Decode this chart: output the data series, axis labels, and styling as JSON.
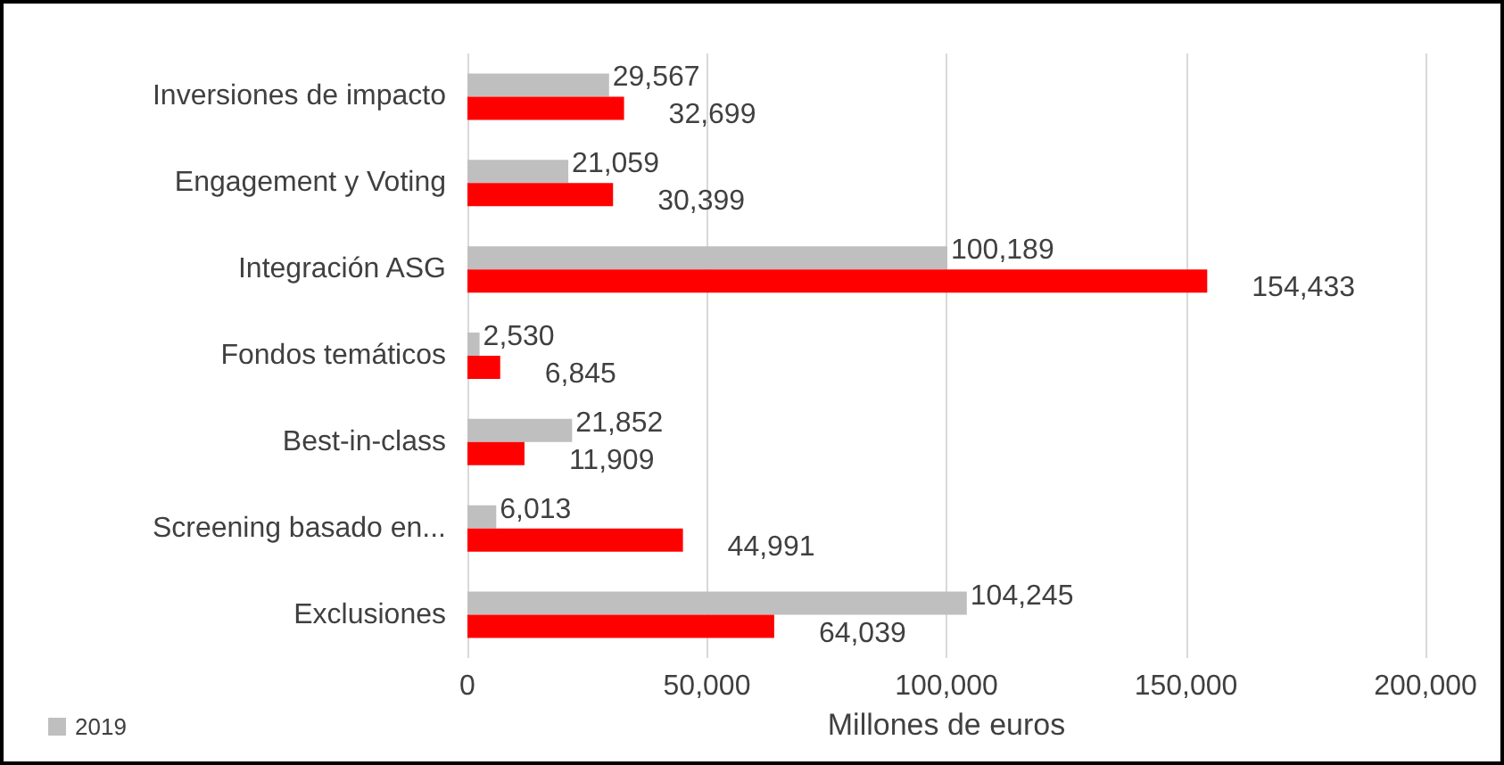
{
  "chart_data": {
    "type": "bar",
    "orientation": "horizontal",
    "xlabel": "Millones de euros",
    "categories": [
      "Inversiones de impacto",
      "Engagement y Voting",
      "Integración ASG",
      "Fondos temáticos",
      "Best-in-class",
      "Screening basado en...",
      "Exclusiones"
    ],
    "series": [
      {
        "name": "2019",
        "color": "#bfbfbf",
        "values": [
          29567,
          21059,
          100189,
          2530,
          21852,
          6013,
          104245
        ],
        "value_labels": [
          "29,567",
          "21,059",
          "100,189",
          "2,530",
          "21,852",
          "6,013",
          "104,245"
        ]
      },
      {
        "color": "#ff0000",
        "values": [
          32699,
          30399,
          154433,
          6845,
          11909,
          44991,
          64039
        ],
        "value_labels": [
          "32,699",
          "30,399",
          "154,433",
          "6,845",
          "11,909",
          "44,991",
          "64,039"
        ]
      }
    ],
    "xlim": [
      0,
      200000
    ],
    "xticks": [
      {
        "value": 0,
        "label": "0"
      },
      {
        "value": 50000,
        "label": "50,000"
      },
      {
        "value": 100000,
        "label": "100,000"
      },
      {
        "value": 150000,
        "label": "150,000"
      },
      {
        "value": 200000,
        "label": "200,000"
      }
    ],
    "grid": "x",
    "legend": "bottom left"
  }
}
